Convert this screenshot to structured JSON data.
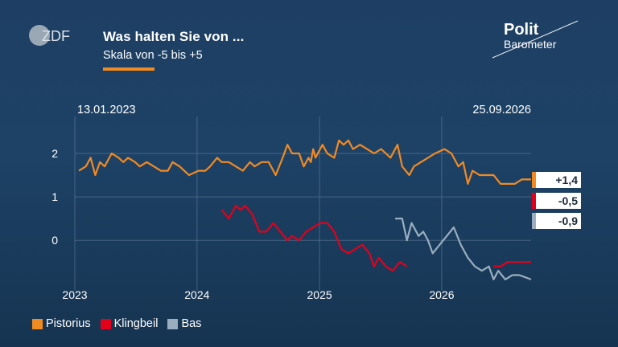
{
  "header": {
    "title": "Was halten Sie von ...",
    "subtitle": "Skala von -5 bis +5"
  },
  "logos": {
    "broadcaster": "ZDF",
    "program_line1": "Polit",
    "program_line2": "Barometer"
  },
  "colors": {
    "orange": "#f28a22",
    "red": "#e3001b",
    "gray": "#9aaec0",
    "background": "#1e3f63"
  },
  "chart_data": {
    "type": "line",
    "date_start_label": "13.01.2023",
    "date_end_label": "25.09.2026",
    "x_range": [
      "2023-01-01",
      "2026-09-25"
    ],
    "ylim": [
      -1.05,
      2.85
    ],
    "yticks": [
      0,
      1,
      2
    ],
    "ytick_labels": [
      "0",
      "1",
      "2"
    ],
    "xticks": [
      "2023-01-01",
      "2024-01-01",
      "2025-01-01",
      "2026-01-01"
    ],
    "xtick_labels": [
      "2023",
      "2024",
      "2025",
      "2026"
    ],
    "grid": true,
    "legend": "bottom-left",
    "series": [
      {
        "name": "Pistorius",
        "color": "#f28a22",
        "end_label": "+1,4",
        "points": [
          [
            "2023-01-13",
            1.6
          ],
          [
            "2023-02-03",
            1.7
          ],
          [
            "2023-02-17",
            1.9
          ],
          [
            "2023-03-03",
            1.5
          ],
          [
            "2023-03-17",
            1.8
          ],
          [
            "2023-03-31",
            1.7
          ],
          [
            "2023-04-21",
            2.0
          ],
          [
            "2023-05-12",
            1.9
          ],
          [
            "2023-05-26",
            1.8
          ],
          [
            "2023-06-09",
            1.9
          ],
          [
            "2023-06-30",
            1.8
          ],
          [
            "2023-07-14",
            1.7
          ],
          [
            "2023-08-04",
            1.8
          ],
          [
            "2023-08-25",
            1.7
          ],
          [
            "2023-09-15",
            1.6
          ],
          [
            "2023-10-06",
            1.6
          ],
          [
            "2023-10-20",
            1.8
          ],
          [
            "2023-11-10",
            1.7
          ],
          [
            "2023-11-24",
            1.6
          ],
          [
            "2023-12-08",
            1.5
          ],
          [
            "2024-01-05",
            1.6
          ],
          [
            "2024-01-26",
            1.6
          ],
          [
            "2024-02-09",
            1.7
          ],
          [
            "2024-03-01",
            1.9
          ],
          [
            "2024-03-15",
            1.8
          ],
          [
            "2024-04-05",
            1.8
          ],
          [
            "2024-04-26",
            1.7
          ],
          [
            "2024-05-17",
            1.6
          ],
          [
            "2024-06-07",
            1.8
          ],
          [
            "2024-06-21",
            1.7
          ],
          [
            "2024-07-12",
            1.8
          ],
          [
            "2024-08-02",
            1.8
          ],
          [
            "2024-08-23",
            1.5
          ],
          [
            "2024-09-13",
            1.9
          ],
          [
            "2024-09-27",
            2.2
          ],
          [
            "2024-10-11",
            2.0
          ],
          [
            "2024-11-01",
            2.0
          ],
          [
            "2024-11-15",
            1.7
          ],
          [
            "2024-11-29",
            1.9
          ],
          [
            "2024-12-06",
            1.8
          ],
          [
            "2024-12-13",
            2.1
          ],
          [
            "2024-12-20",
            1.9
          ],
          [
            "2025-01-10",
            2.2
          ],
          [
            "2025-01-24",
            2.0
          ],
          [
            "2025-02-14",
            1.9
          ],
          [
            "2025-02-28",
            2.3
          ],
          [
            "2025-03-14",
            2.2
          ],
          [
            "2025-03-28",
            2.3
          ],
          [
            "2025-04-11",
            2.1
          ],
          [
            "2025-05-02",
            2.2
          ],
          [
            "2025-05-23",
            2.1
          ],
          [
            "2025-06-13",
            2.0
          ],
          [
            "2025-07-04",
            2.1
          ],
          [
            "2025-07-18",
            2.0
          ],
          [
            "2025-08-01",
            1.9
          ],
          [
            "2025-08-22",
            2.2
          ],
          [
            "2025-09-05",
            1.7
          ],
          [
            "2025-09-26",
            1.5
          ],
          [
            "2025-10-10",
            1.7
          ],
          [
            "2025-10-31",
            1.8
          ],
          [
            "2025-11-21",
            1.9
          ],
          [
            "2025-12-12",
            2.0
          ],
          [
            "2026-01-09",
            2.1
          ],
          [
            "2026-01-30",
            2.0
          ],
          [
            "2026-02-20",
            1.7
          ],
          [
            "2026-03-06",
            1.8
          ],
          [
            "2026-03-20",
            1.3
          ],
          [
            "2026-04-03",
            1.6
          ],
          [
            "2026-04-24",
            1.5
          ],
          [
            "2026-05-15",
            1.5
          ],
          [
            "2026-06-05",
            1.5
          ],
          [
            "2026-06-26",
            1.3
          ],
          [
            "2026-07-17",
            1.3
          ],
          [
            "2026-08-07",
            1.3
          ],
          [
            "2026-08-28",
            1.4
          ],
          [
            "2026-09-25",
            1.4
          ]
        ]
      },
      {
        "name": "Klingbeil",
        "color": "#e3001b",
        "end_label": "-0,5",
        "points": [
          [
            "2024-03-15",
            0.7
          ],
          [
            "2024-04-05",
            0.5
          ],
          [
            "2024-04-26",
            0.8
          ],
          [
            "2024-05-10",
            0.7
          ],
          [
            "2024-05-24",
            0.8
          ],
          [
            "2024-06-14",
            0.6
          ],
          [
            "2024-07-05",
            0.2
          ],
          [
            "2024-07-26",
            0.2
          ],
          [
            "2024-08-16",
            0.4
          ],
          [
            "2024-09-06",
            0.2
          ],
          [
            "2024-09-27",
            0.0
          ],
          [
            "2024-10-11",
            0.1
          ],
          [
            "2024-11-01",
            0.0
          ],
          [
            "2024-11-22",
            0.2
          ],
          [
            "2024-12-13",
            0.3
          ],
          [
            "2025-01-03",
            0.4
          ],
          [
            "2025-01-24",
            0.4
          ],
          [
            "2025-02-14",
            0.2
          ],
          [
            "2025-03-07",
            -0.2
          ],
          [
            "2025-03-28",
            -0.3
          ],
          [
            "2025-04-18",
            -0.2
          ],
          [
            "2025-05-09",
            -0.1
          ],
          [
            "2025-05-30",
            -0.3
          ],
          [
            "2025-06-13",
            -0.6
          ],
          [
            "2025-06-27",
            -0.4
          ],
          [
            "2025-07-18",
            -0.6
          ],
          [
            "2025-08-08",
            -0.7
          ],
          [
            "2025-08-29",
            -0.5
          ],
          [
            "2025-09-19",
            -0.6
          ],
          [
            "2026-06-05",
            -0.6
          ],
          [
            "2026-06-26",
            -0.6
          ],
          [
            "2026-07-17",
            -0.5
          ],
          [
            "2026-09-25",
            -0.5
          ]
        ]
      },
      {
        "name": "Bas",
        "color": "#9aaec0",
        "end_label": "-0,9",
        "points": [
          [
            "2025-08-15",
            0.5
          ],
          [
            "2025-09-05",
            0.5
          ],
          [
            "2025-09-19",
            0.0
          ],
          [
            "2025-10-03",
            0.4
          ],
          [
            "2025-10-24",
            0.1
          ],
          [
            "2025-11-07",
            0.2
          ],
          [
            "2025-11-21",
            0.0
          ],
          [
            "2025-12-05",
            -0.3
          ],
          [
            "2025-12-26",
            -0.1
          ],
          [
            "2026-01-16",
            0.1
          ],
          [
            "2026-02-06",
            0.3
          ],
          [
            "2026-02-27",
            -0.1
          ],
          [
            "2026-03-20",
            -0.4
          ],
          [
            "2026-04-10",
            -0.6
          ],
          [
            "2026-05-01",
            -0.7
          ],
          [
            "2026-05-22",
            -0.6
          ],
          [
            "2026-06-05",
            -0.9
          ],
          [
            "2026-06-19",
            -0.7
          ],
          [
            "2026-07-10",
            -0.9
          ],
          [
            "2026-07-31",
            -0.8
          ],
          [
            "2026-08-21",
            -0.8
          ],
          [
            "2026-09-25",
            -0.9
          ]
        ]
      }
    ]
  }
}
